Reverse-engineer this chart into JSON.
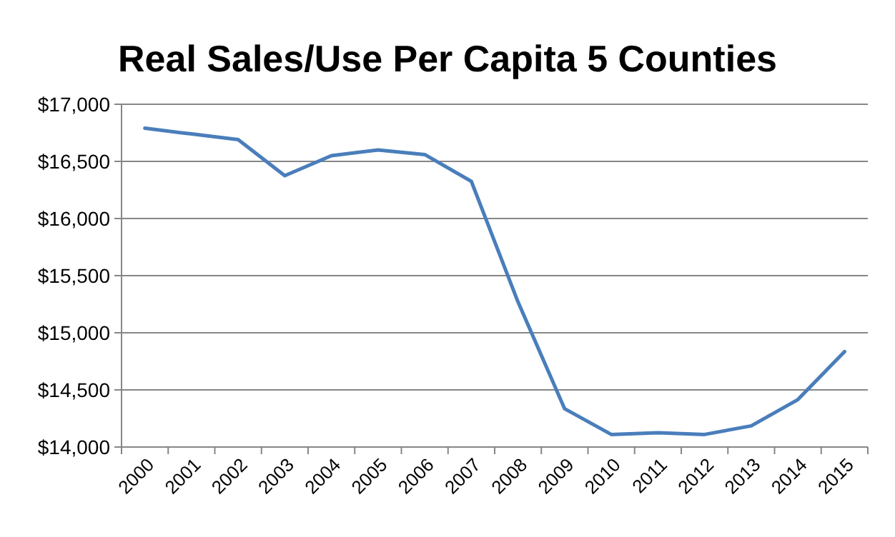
{
  "chart_data": {
    "type": "line",
    "title": "Real Sales/Use Per Capita 5 Counties",
    "categories": [
      "2000",
      "2001",
      "2002",
      "2003",
      "2004",
      "2005",
      "2006",
      "2007",
      "2008",
      "2009",
      "2010",
      "2011",
      "2012",
      "2013",
      "2014",
      "2015"
    ],
    "series": [
      {
        "color": "#4a7ebb",
        "values": [
          16790,
          16740,
          16690,
          16375,
          16550,
          16600,
          16560,
          16325,
          15270,
          14335,
          14110,
          14125,
          14110,
          14185,
          14415,
          14835
        ]
      }
    ],
    "ylim": [
      14000,
      17000
    ],
    "yticks": [
      {
        "value": 14000,
        "label": "$14,000"
      },
      {
        "value": 14500,
        "label": "$14,500"
      },
      {
        "value": 15000,
        "label": "$15,000"
      },
      {
        "value": 15500,
        "label": "$15,500"
      },
      {
        "value": 16000,
        "label": "$16,000"
      },
      {
        "value": 16500,
        "label": "$16,500"
      },
      {
        "value": 17000,
        "label": "$17,000"
      }
    ],
    "grid": "y",
    "marker": "none",
    "line_style": "solid"
  }
}
